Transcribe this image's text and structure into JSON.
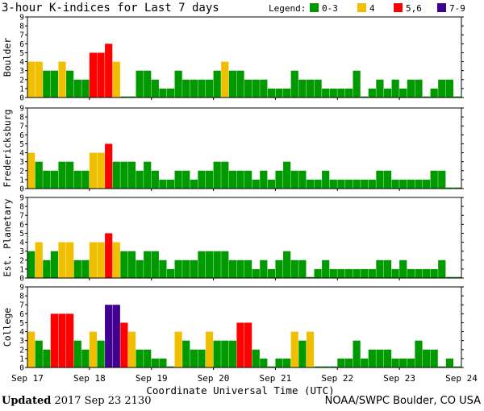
{
  "title": "3-hour K-indices for Last 7 days",
  "legend": {
    "label": "Legend:",
    "items": [
      {
        "label": "0-3",
        "color": "#009900"
      },
      {
        "label": "4",
        "color": "#f0c000"
      },
      {
        "label": "5,6",
        "color": "#ff0000"
      },
      {
        "label": "7-9",
        "color": "#400090"
      }
    ]
  },
  "footer": {
    "updated_label": "Updated",
    "updated_value": "2017 Sep 23 2130",
    "source": "NOAA/SWPC Boulder, CO USA"
  },
  "chart_data": [
    {
      "type": "bar",
      "station": "Boulder",
      "ylabel": "Boulder",
      "ylim": [
        0,
        9
      ],
      "yticks": [
        0,
        1,
        2,
        3,
        4,
        5,
        6,
        7,
        8,
        9
      ],
      "xlabel": "Coordinate Universal Time (UTC)",
      "xticks": [
        "Sep 17",
        "Sep 18",
        "Sep 19",
        "Sep 20",
        "Sep 21",
        "Sep 22",
        "Sep 23",
        "Sep 24"
      ],
      "values": [
        4,
        4,
        3,
        3,
        4,
        3,
        2,
        2,
        5,
        5,
        6,
        4,
        0,
        0,
        3,
        3,
        2,
        1,
        1,
        3,
        2,
        2,
        2,
        2,
        3,
        4,
        3,
        3,
        2,
        2,
        2,
        1,
        1,
        1,
        3,
        2,
        2,
        2,
        1,
        1,
        1,
        1,
        3,
        0,
        1,
        2,
        1,
        2,
        1,
        2,
        2,
        0,
        1,
        2,
        2,
        0
      ]
    },
    {
      "type": "bar",
      "station": "Fredericksburg",
      "ylabel": "Fredericksburg",
      "ylim": [
        0,
        9
      ],
      "yticks": [
        0,
        1,
        2,
        3,
        4,
        5,
        6,
        7,
        8,
        9
      ],
      "xticks": [
        "Sep 17",
        "Sep 18",
        "Sep 19",
        "Sep 20",
        "Sep 21",
        "Sep 22",
        "Sep 23",
        "Sep 24"
      ],
      "values": [
        4,
        3,
        2,
        2,
        3,
        3,
        2,
        2,
        4,
        4,
        5,
        3,
        3,
        3,
        2,
        3,
        2,
        1,
        1,
        2,
        2,
        1,
        2,
        2,
        3,
        3,
        2,
        2,
        2,
        1,
        2,
        1,
        2,
        3,
        2,
        2,
        1,
        1,
        2,
        1,
        1,
        1,
        1,
        1,
        1,
        2,
        2,
        1,
        1,
        1,
        1,
        1,
        2,
        2,
        0,
        0
      ]
    },
    {
      "type": "bar",
      "station": "Est. Planetary",
      "ylabel": "Est. Planetary",
      "ylim": [
        0,
        9
      ],
      "yticks": [
        0,
        1,
        2,
        3,
        4,
        5,
        6,
        7,
        8,
        9
      ],
      "xticks": [
        "Sep 17",
        "Sep 18",
        "Sep 19",
        "Sep 20",
        "Sep 21",
        "Sep 22",
        "Sep 23",
        "Sep 24"
      ],
      "values": [
        3,
        4,
        2,
        3,
        4,
        4,
        2,
        2,
        4,
        4,
        5,
        4,
        3,
        3,
        2,
        3,
        3,
        2,
        1,
        2,
        2,
        2,
        3,
        3,
        3,
        3,
        2,
        2,
        2,
        1,
        2,
        1,
        2,
        3,
        2,
        2,
        0,
        1,
        2,
        1,
        1,
        1,
        1,
        1,
        1,
        2,
        2,
        1,
        2,
        1,
        1,
        1,
        1,
        2,
        0,
        0
      ]
    },
    {
      "type": "bar",
      "station": "College",
      "ylabel": "College",
      "ylim": [
        0,
        9
      ],
      "yticks": [
        0,
        1,
        2,
        3,
        4,
        5,
        6,
        7,
        8,
        9
      ],
      "xticks": [
        "Sep 17",
        "Sep 18",
        "Sep 19",
        "Sep 20",
        "Sep 21",
        "Sep 22",
        "Sep 23",
        "Sep 24"
      ],
      "values": [
        4,
        3,
        2,
        6,
        6,
        6,
        3,
        2,
        4,
        3,
        7,
        7,
        5,
        4,
        2,
        2,
        1,
        1,
        0,
        4,
        3,
        2,
        2,
        4,
        3,
        3,
        3,
        5,
        5,
        2,
        1,
        0,
        1,
        1,
        4,
        3,
        4,
        0,
        0,
        0,
        1,
        1,
        3,
        1,
        2,
        2,
        2,
        1,
        1,
        1,
        3,
        2,
        2,
        0,
        1,
        0
      ]
    }
  ]
}
